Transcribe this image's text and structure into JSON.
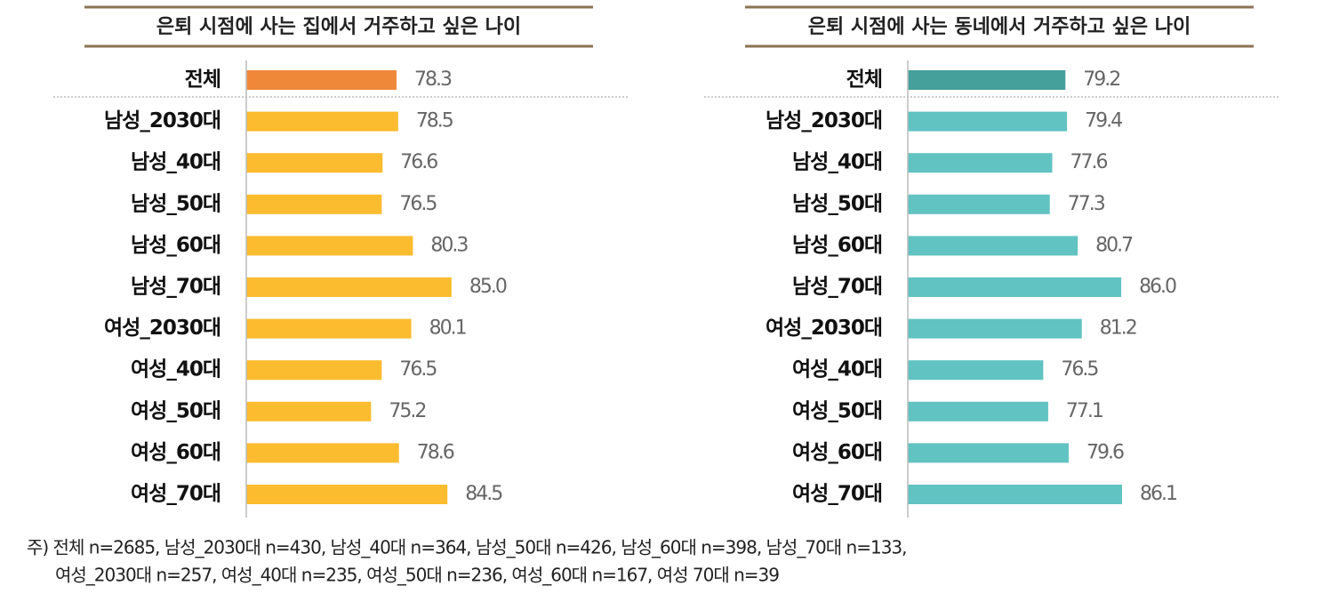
{
  "chart_data": [
    {
      "type": "barh",
      "title": "은퇴 시점에 사는 집에서 거주하고 싶은 나이",
      "categories": [
        "전체",
        "남성_2030대",
        "남성_40대",
        "남성_50대",
        "남성_60대",
        "남성_70대",
        "여성_2030대",
        "여성_40대",
        "여성_50대",
        "여성_60대",
        "여성_70대"
      ],
      "values": [
        78.3,
        78.5,
        76.6,
        76.5,
        80.3,
        85.0,
        80.1,
        76.5,
        75.2,
        78.6,
        84.5
      ],
      "value_labels": [
        "78.3",
        "78.5",
        "76.6",
        "76.5",
        "80.3",
        "85.0",
        "80.1",
        "76.5",
        "75.2",
        "78.6",
        "84.5"
      ],
      "colors": [
        "#f0883a",
        "#fbbc2f",
        "#fbbc2f",
        "#fbbc2f",
        "#fbbc2f",
        "#fbbc2f",
        "#fbbc2f",
        "#fbbc2f",
        "#fbbc2f",
        "#fbbc2f",
        "#fbbc2f"
      ],
      "xlim": [
        60,
        90
      ]
    },
    {
      "type": "barh",
      "title": "은퇴 시점에 사는 동네에서 거주하고 싶은 나이",
      "categories": [
        "전체",
        "남성_2030대",
        "남성_40대",
        "남성_50대",
        "남성_60대",
        "남성_70대",
        "여성_2030대",
        "여성_40대",
        "여성_50대",
        "여성_60대",
        "여성_70대"
      ],
      "values": [
        79.2,
        79.4,
        77.6,
        77.3,
        80.7,
        86.0,
        81.2,
        76.5,
        77.1,
        79.6,
        86.1
      ],
      "value_labels": [
        "79.2",
        "79.4",
        "77.6",
        "77.3",
        "80.7",
        "86.0",
        "81.2",
        "76.5",
        "77.1",
        "79.6",
        "86.1"
      ],
      "colors": [
        "#45a09c",
        "#61c3c2",
        "#61c3c2",
        "#61c3c2",
        "#61c3c2",
        "#61c3c2",
        "#61c3c2",
        "#61c3c2",
        "#61c3c2",
        "#61c3c2",
        "#61c3c2"
      ],
      "xlim": [
        60,
        90
      ]
    }
  ],
  "note": [
    "주) 전체 n=2685, 남성_2030대 n=430, 남성_40대 n=364, 남성_50대 n=426, 남성_60대 n=398, 남성_70대 n=133,",
    "여성_2030대 n=257, 여성_40대 n=235, 여성_50대 n=236, 여성_60대 n=167, 여성 70대 n=39"
  ]
}
